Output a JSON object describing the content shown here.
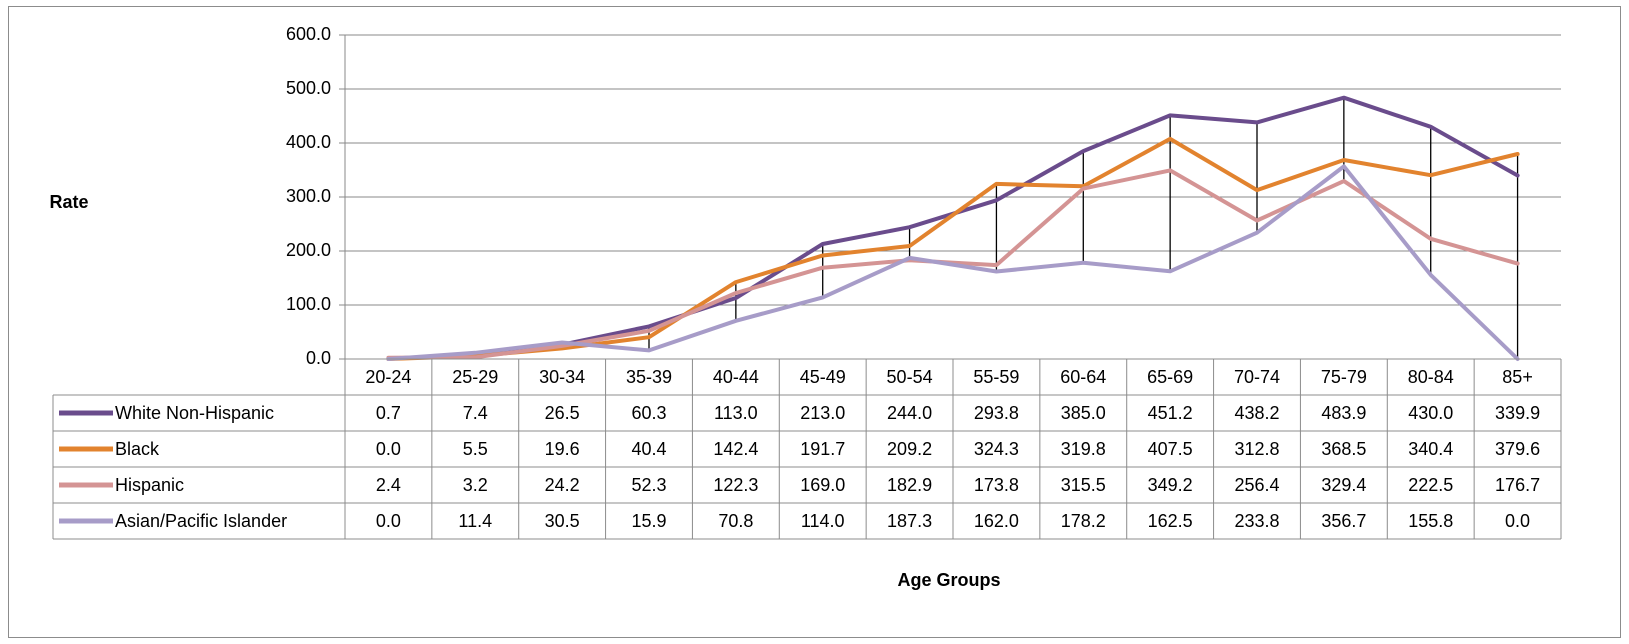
{
  "chart_data": {
    "type": "line",
    "ylabel": "Rate",
    "xlabel": "Age Groups",
    "ylim": [
      0,
      600
    ],
    "y_ticks": [
      "0.0",
      "100.0",
      "200.0",
      "300.0",
      "400.0",
      "500.0",
      "600.0"
    ],
    "y_tick_values": [
      0,
      100,
      200,
      300,
      400,
      500,
      600
    ],
    "grid": true,
    "legend": "data-table",
    "high_low_lines": true,
    "categories": [
      "20-24",
      "25-29",
      "30-34",
      "35-39",
      "40-44",
      "45-49",
      "50-54",
      "55-59",
      "60-64",
      "65-69",
      "70-74",
      "75-79",
      "80-84",
      "85+"
    ],
    "series": [
      {
        "name": "White Non-Hispanic",
        "color": "#6a4c8c",
        "values": [
          0.7,
          7.4,
          26.5,
          60.3,
          113.0,
          213.0,
          244.0,
          293.8,
          385.0,
          451.2,
          438.2,
          483.9,
          430.0,
          339.9
        ],
        "labels": [
          "0.7",
          "7.4",
          "26.5",
          "60.3",
          "113.0",
          "213.0",
          "244.0",
          "293.8",
          "385.0",
          "451.2",
          "438.2",
          "483.9",
          "430.0",
          "339.9"
        ]
      },
      {
        "name": "Black",
        "color": "#e2832e",
        "values": [
          0.0,
          5.5,
          19.6,
          40.4,
          142.4,
          191.7,
          209.2,
          324.3,
          319.8,
          407.5,
          312.8,
          368.5,
          340.4,
          379.6
        ],
        "labels": [
          "0.0",
          "5.5",
          "19.6",
          "40.4",
          "142.4",
          "191.7",
          "209.2",
          "324.3",
          "319.8",
          "407.5",
          "312.8",
          "368.5",
          "340.4",
          "379.6"
        ]
      },
      {
        "name": "Hispanic",
        "color": "#d49494",
        "values": [
          2.4,
          3.2,
          24.2,
          52.3,
          122.3,
          169.0,
          182.9,
          173.8,
          315.5,
          349.2,
          256.4,
          329.4,
          222.5,
          176.7
        ],
        "labels": [
          "2.4",
          "3.2",
          "24.2",
          "52.3",
          "122.3",
          "169.0",
          "182.9",
          "173.8",
          "315.5",
          "349.2",
          "256.4",
          "329.4",
          "222.5",
          "176.7"
        ]
      },
      {
        "name": "Asian/Pacific Islander",
        "color": "#a79cc8",
        "values": [
          0.0,
          11.4,
          30.5,
          15.9,
          70.8,
          114.0,
          187.3,
          162.0,
          178.2,
          162.5,
          233.8,
          356.7,
          155.8,
          0.0
        ],
        "labels": [
          "0.0",
          "11.4",
          "30.5",
          "15.9",
          "70.8",
          "114.0",
          "187.3",
          "162.0",
          "178.2",
          "162.5",
          "233.8",
          "356.7",
          "155.8",
          "0.0"
        ]
      }
    ]
  }
}
